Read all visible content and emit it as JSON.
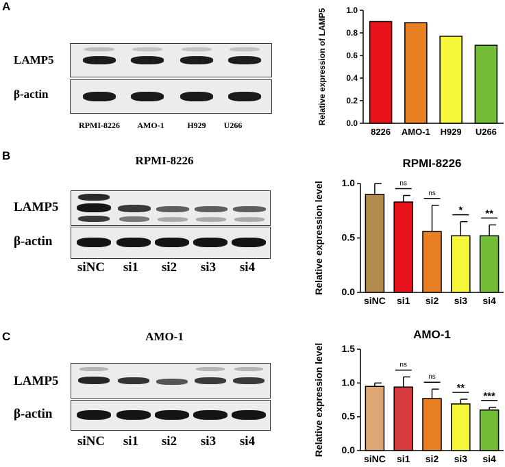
{
  "panels": [
    {
      "letter": "A",
      "blot": {
        "title": "",
        "row_labels": [
          "LAMP5",
          "β-actin"
        ],
        "lanes": [
          "RPMI-8226",
          "AMO-1",
          "H929",
          "U266"
        ]
      }
    },
    {
      "letter": "B",
      "blot": {
        "title": "RPMI-8226",
        "row_labels": [
          "LAMP5",
          "β-actin"
        ],
        "lanes": [
          "siNC",
          "si1",
          "si2",
          "si3",
          "si4"
        ]
      }
    },
    {
      "letter": "C",
      "blot": {
        "title": "AMO-1",
        "row_labels": [
          "LAMP5",
          "β-actin"
        ],
        "lanes": [
          "siNC",
          "si1",
          "si2",
          "si3",
          "si4"
        ]
      }
    }
  ],
  "chart_data": [
    {
      "type": "bar",
      "title": "",
      "ylabel": "Relative expression of LAMP5",
      "xlabel": "",
      "categories": [
        "8226",
        "AMO-1",
        "H929",
        "U266"
      ],
      "values": [
        0.9,
        0.89,
        0.77,
        0.69
      ],
      "colors": [
        "#e8121b",
        "#e87f23",
        "#f6f63a",
        "#73bc35"
      ],
      "ylim": [
        0,
        1.0
      ],
      "yticks": [
        "0.0",
        "0.2",
        "0.4",
        "0.6",
        "0.8",
        "1.0"
      ],
      "grid": false
    },
    {
      "type": "bar",
      "title": "RPMI-8226",
      "ylabel": "Relative expression level",
      "xlabel": "",
      "categories": [
        "siNC",
        "si1",
        "si2",
        "si3",
        "si4"
      ],
      "values": [
        0.9,
        0.83,
        0.56,
        0.52,
        0.52
      ],
      "errors": [
        0.1,
        0.06,
        0.24,
        0.13,
        0.1
      ],
      "significance": [
        "",
        "ns",
        "ns",
        "*",
        "**"
      ],
      "colors": [
        "#b38b4c",
        "#e8121b",
        "#e87f23",
        "#f6f63a",
        "#73bc35"
      ],
      "ylim": [
        0,
        1.0
      ],
      "yticks": [
        "0.0",
        "0.5",
        "1.0"
      ],
      "grid": false
    },
    {
      "type": "bar",
      "title": "AMO-1",
      "ylabel": "Relative expression level",
      "xlabel": "",
      "categories": [
        "siNC",
        "si1",
        "si2",
        "si3",
        "si4"
      ],
      "values": [
        0.95,
        0.94,
        0.77,
        0.69,
        0.6
      ],
      "errors": [
        0.05,
        0.15,
        0.14,
        0.07,
        0.04
      ],
      "significance": [
        "",
        "ns",
        "ns",
        "**",
        "***"
      ],
      "colors": [
        "#dca675",
        "#d63a3c",
        "#e87f23",
        "#f6f63a",
        "#73bc35"
      ],
      "ylim": [
        0,
        1.5
      ],
      "yticks": [
        "0.0",
        "0.5",
        "1.0",
        "1.5"
      ],
      "grid": false
    }
  ]
}
